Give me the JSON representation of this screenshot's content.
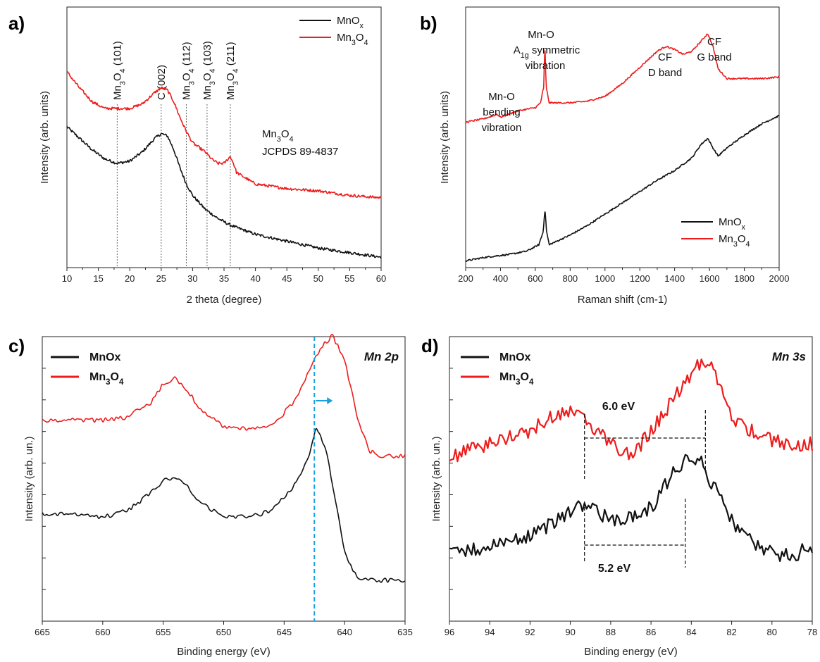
{
  "colors": {
    "black": "#111111",
    "red": "#ee1c1c",
    "blue_dashed": "#1a9fe0",
    "ref_line": "#888888"
  },
  "panels": {
    "a": {
      "label": "a)",
      "xlabel": "2 theta (degree)",
      "ylabel": "Intensity (arb. units)",
      "annotation_line1": "Mn",
      "annotation_sub": "3",
      "annotation_after": "O",
      "annotation_sub2": "4",
      "annotation_line2": "JCPDS 89-4837",
      "legend": [
        {
          "main": "MnO",
          "sub": "x",
          "tail": ""
        },
        {
          "main": "Mn",
          "sub": "3",
          "tail": "O",
          "sub2": "4"
        }
      ],
      "refs": [
        {
          "label": "Mn3O4 (101)",
          "x": 18
        },
        {
          "label": "C (002)",
          "x": 25
        },
        {
          "label": "Mn3O4 (112)",
          "x": 29
        },
        {
          "label": "Mn3O4 (103)",
          "x": 32.3
        },
        {
          "label": "Mn3O4 (211)",
          "x": 36
        }
      ]
    },
    "b": {
      "label": "b)",
      "xlabel": "Raman shift (cm-1)",
      "ylabel": "Intensity (arb. units)",
      "peak_labels": [
        {
          "lines": [
            "Mn-O",
            "bending",
            "vibration"
          ]
        },
        {
          "lines": [
            "Mn-O",
            "A1g symmetric",
            "vibration"
          ]
        },
        {
          "lines": [
            "CF",
            "D band"
          ]
        },
        {
          "lines": [
            "CF",
            "G band"
          ]
        }
      ],
      "legend": [
        {
          "main": "MnO",
          "sub": "x"
        },
        {
          "main": "Mn",
          "sub": "3",
          "tail": "O",
          "sub2": "4"
        }
      ]
    },
    "c": {
      "label": "c)",
      "xlabel": "Binding energy (eV)",
      "ylabel": "Intensity (arb. un.)",
      "title": "Mn 2p",
      "legend": [
        {
          "main": "MnOx"
        },
        {
          "main": "Mn",
          "sub": "3",
          "tail": "O",
          "sub2": "4"
        }
      ]
    },
    "d": {
      "label": "d)",
      "xlabel": "Binding energy (eV)",
      "ylabel": "Intensity (arb. un.)",
      "title": "Mn 3s",
      "legend": [
        {
          "main": "MnOx"
        },
        {
          "main": "Mn",
          "sub": "3",
          "tail": "O",
          "sub2": "4"
        }
      ],
      "splitting_red": "6.0 eV",
      "splitting_black": "5.2 eV"
    }
  },
  "chart_data": [
    {
      "type": "line",
      "panel": "a",
      "xlabel": "2 theta (degree)",
      "ylabel": "Intensity (arb. units)",
      "xlim": [
        10,
        60
      ],
      "xticks": [
        10,
        15,
        20,
        25,
        30,
        35,
        40,
        45,
        50,
        55,
        60
      ],
      "series": [
        {
          "name": "MnOx",
          "color": "#111111",
          "x": [
            10,
            12,
            14,
            16,
            18,
            20,
            22,
            24,
            25,
            26,
            27,
            28,
            29,
            30,
            32,
            34,
            36,
            40,
            45,
            50,
            55,
            60
          ],
          "y": [
            0.6,
            0.55,
            0.5,
            0.46,
            0.44,
            0.45,
            0.49,
            0.55,
            0.57,
            0.56,
            0.5,
            0.42,
            0.35,
            0.3,
            0.24,
            0.2,
            0.17,
            0.13,
            0.1,
            0.07,
            0.05,
            0.03
          ]
        },
        {
          "name": "Mn3O4",
          "color": "#ee1c1c",
          "x": [
            10,
            12,
            14,
            16,
            18,
            20,
            22,
            24,
            25,
            26,
            27,
            28,
            29,
            30,
            32,
            33,
            34,
            35,
            36,
            36.5,
            37,
            40,
            45,
            50,
            55,
            60
          ],
          "y": [
            0.84,
            0.77,
            0.71,
            0.68,
            0.68,
            0.68,
            0.7,
            0.75,
            0.77,
            0.76,
            0.71,
            0.64,
            0.58,
            0.53,
            0.49,
            0.46,
            0.44,
            0.44,
            0.47,
            0.44,
            0.4,
            0.35,
            0.33,
            0.32,
            0.3,
            0.29
          ]
        }
      ]
    },
    {
      "type": "line",
      "panel": "b",
      "xlabel": "Raman shift (cm-1)",
      "ylabel": "Intensity (arb. units)",
      "xlim": [
        200,
        2000
      ],
      "xticks": [
        200,
        400,
        600,
        800,
        1000,
        1200,
        1400,
        1600,
        1800,
        2000
      ],
      "series": [
        {
          "name": "MnOx",
          "color": "#111111",
          "x": [
            200,
            300,
            370,
            450,
            550,
            620,
            645,
            655,
            665,
            680,
            700,
            800,
            900,
            1000,
            1100,
            1200,
            1300,
            1400,
            1450,
            1500,
            1550,
            1590,
            1620,
            1650,
            1700,
            1800,
            1900,
            2000
          ],
          "y": [
            0.02,
            0.04,
            0.05,
            0.06,
            0.08,
            0.12,
            0.2,
            0.34,
            0.2,
            0.12,
            0.13,
            0.18,
            0.24,
            0.31,
            0.38,
            0.45,
            0.52,
            0.58,
            0.62,
            0.66,
            0.74,
            0.78,
            0.72,
            0.67,
            0.72,
            0.8,
            0.87,
            0.92
          ]
        },
        {
          "name": "Mn3O4",
          "color": "#ee1c1c",
          "x": [
            200,
            300,
            360,
            380,
            400,
            500,
            600,
            630,
            648,
            655,
            662,
            680,
            700,
            800,
            900,
            1000,
            1100,
            1200,
            1300,
            1350,
            1400,
            1450,
            1500,
            1550,
            1590,
            1620,
            1650,
            1700,
            1800,
            1900,
            2000
          ],
          "y": [
            0.88,
            0.9,
            0.92,
            0.93,
            0.91,
            0.95,
            0.97,
            1.0,
            1.1,
            1.36,
            1.1,
            1.0,
            1.0,
            1.0,
            1.01,
            1.04,
            1.12,
            1.22,
            1.32,
            1.35,
            1.33,
            1.3,
            1.32,
            1.38,
            1.43,
            1.35,
            1.21,
            1.15,
            1.15,
            1.15,
            1.16
          ]
        }
      ]
    },
    {
      "type": "line",
      "panel": "c",
      "title": "Mn 2p",
      "xlabel": "Binding energy (eV)",
      "ylabel": "Intensity (arb. un.)",
      "xlim": [
        665,
        635
      ],
      "xticks": [
        665,
        660,
        655,
        650,
        645,
        640,
        635
      ],
      "reference_line_x": 642.5,
      "series": [
        {
          "name": "MnOx",
          "color": "#111111",
          "x": [
            666,
            662,
            660,
            658,
            656,
            655,
            654,
            653,
            652,
            650,
            648,
            646,
            644,
            643,
            642.3,
            641.5,
            640.5,
            640,
            639,
            637,
            635
          ],
          "y": [
            0.39,
            0.39,
            0.38,
            0.4,
            0.46,
            0.5,
            0.51,
            0.48,
            0.43,
            0.38,
            0.38,
            0.4,
            0.49,
            0.58,
            0.68,
            0.6,
            0.38,
            0.26,
            0.18,
            0.17,
            0.17
          ]
        },
        {
          "name": "Mn3O4",
          "color": "#ee1c1c",
          "x": [
            666,
            662,
            660,
            658,
            656,
            655,
            654,
            653,
            652,
            650,
            648,
            646,
            644,
            643,
            642,
            641,
            640,
            639,
            638,
            637,
            635
          ],
          "y": [
            0.7,
            0.7,
            0.7,
            0.71,
            0.76,
            0.82,
            0.84,
            0.8,
            0.74,
            0.68,
            0.67,
            0.68,
            0.77,
            0.86,
            0.94,
            0.98,
            0.9,
            0.72,
            0.6,
            0.58,
            0.58
          ]
        }
      ]
    },
    {
      "type": "line",
      "panel": "d",
      "title": "Mn 3s",
      "xlabel": "Binding energy (eV)",
      "ylabel": "Intensity (arb. un.)",
      "xlim": [
        96,
        78
      ],
      "xticks": [
        96,
        94,
        92,
        90,
        88,
        86,
        84,
        82,
        80,
        78
      ],
      "series": [
        {
          "name": "MnOx",
          "color": "#111111",
          "x": [
            96,
            94,
            92,
            91,
            90,
            89.3,
            88.5,
            88,
            87,
            86,
            85,
            84.5,
            84,
            83.5,
            83,
            82,
            81,
            80,
            79,
            78
          ],
          "y": [
            0.28,
            0.3,
            0.33,
            0.37,
            0.41,
            0.43,
            0.4,
            0.38,
            0.39,
            0.42,
            0.52,
            0.56,
            0.58,
            0.56,
            0.5,
            0.38,
            0.31,
            0.28,
            0.27,
            0.3
          ]
        },
        {
          "name": "Mn3O4",
          "color": "#ee1c1c",
          "x": [
            96,
            95,
            94,
            93,
            92,
            91,
            90,
            89.5,
            89,
            88,
            87,
            86,
            85,
            84,
            83.5,
            83,
            82.5,
            82,
            81,
            80,
            79,
            78
          ],
          "y": [
            0.58,
            0.6,
            0.62,
            0.64,
            0.66,
            0.7,
            0.72,
            0.71,
            0.68,
            0.62,
            0.58,
            0.66,
            0.75,
            0.84,
            0.88,
            0.86,
            0.78,
            0.7,
            0.66,
            0.63,
            0.62,
            0.62
          ]
        }
      ]
    }
  ]
}
